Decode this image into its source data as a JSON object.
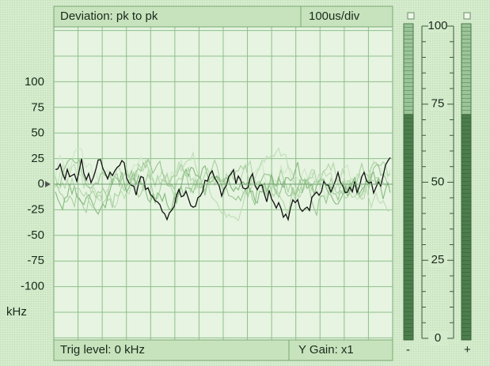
{
  "header": {
    "mode": "Deviation:  pk to pk",
    "timebase": "100us/div"
  },
  "footer": {
    "trigger": "Trig level:  0 kHz",
    "gain": "Y Gain: x1"
  },
  "y_axis": {
    "ticks": [
      "100",
      "75",
      "50",
      "25",
      "0",
      "-25",
      "-50",
      "-75",
      "-100"
    ],
    "unit": "kHz"
  },
  "meter": {
    "ticks": [
      "100",
      "75",
      "50",
      "25",
      "0"
    ],
    "minus": "-",
    "plus": "+"
  }
}
